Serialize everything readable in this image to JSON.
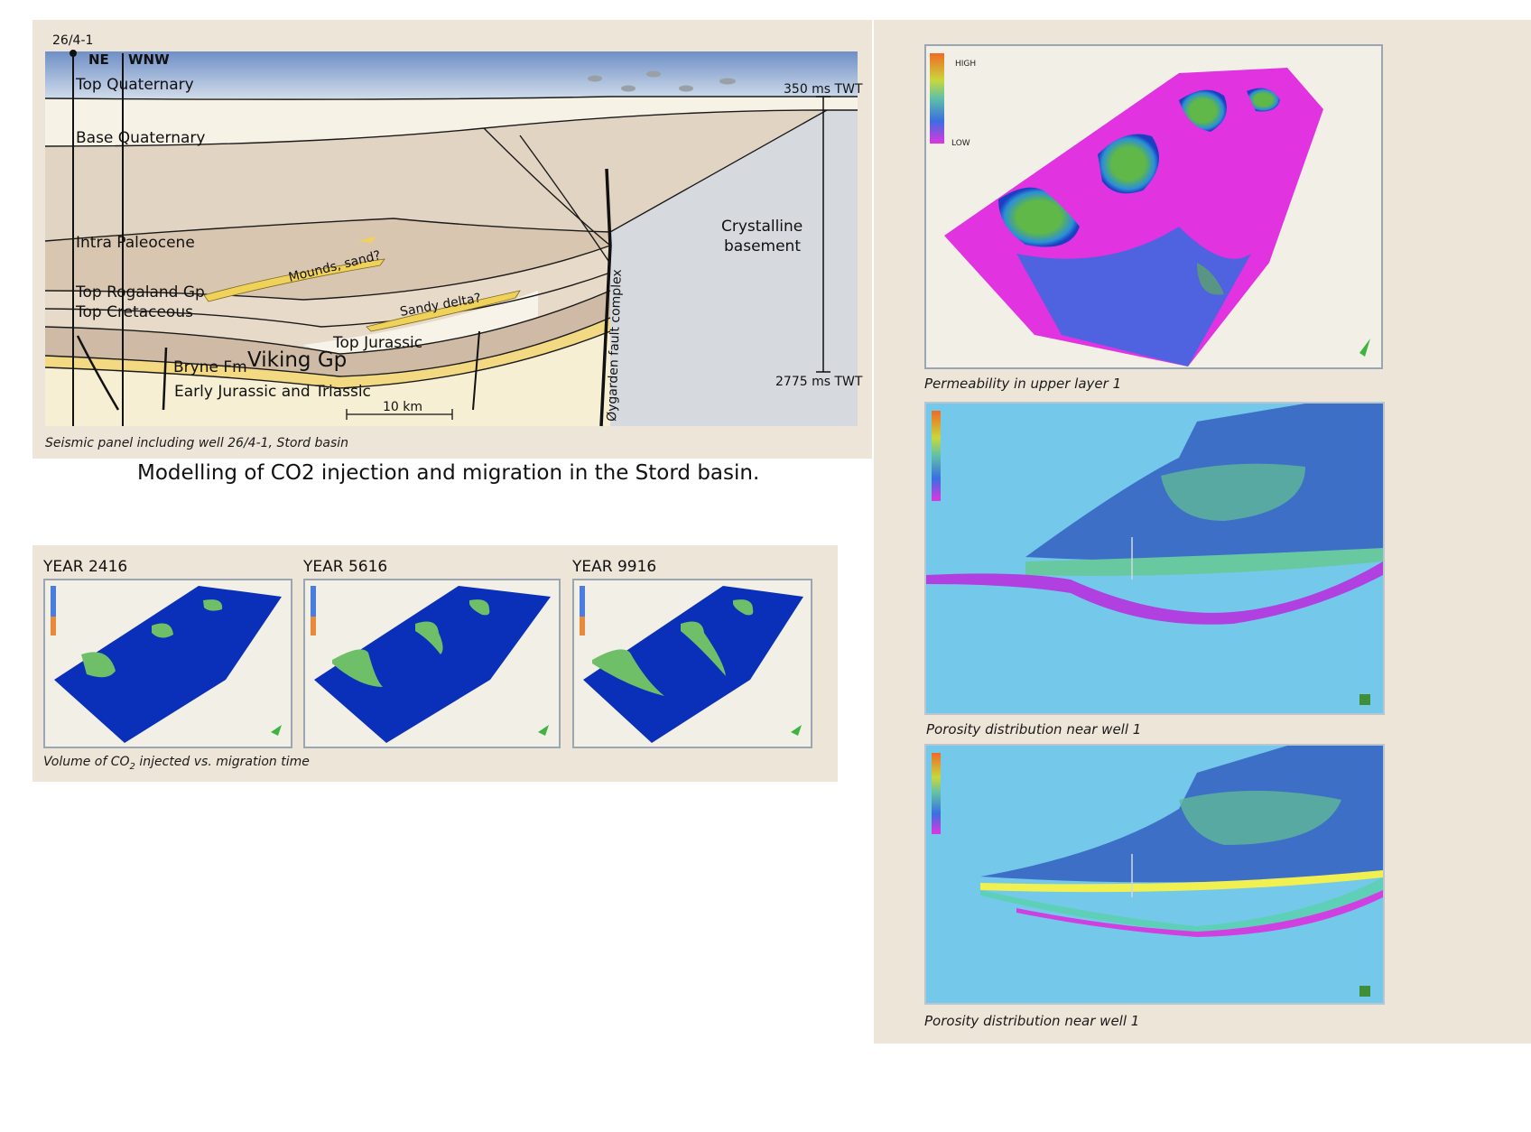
{
  "seismic": {
    "well_label": "26/4-1",
    "dir_ne": "NE",
    "dir_wnw": "WNW",
    "twt_top": "350 ms TWT",
    "twt_bottom": "2775 ms TWT",
    "scale_bar": "10 km",
    "horizons": {
      "top_quaternary": "Top Quaternary",
      "base_quaternary": "Base Quaternary",
      "intra_paleocene": "Intra Paleocene",
      "top_rogaland": "Top Rogaland Gp",
      "top_cretaceous": "Top Cretaceous",
      "top_jurassic": "Top Jurassic",
      "viking": "Viking Gp",
      "bryne": "Bryne Fm",
      "early_jurassic": "Early Jurassic and Triassic"
    },
    "annotations": {
      "mounds": "Mounds, sand?",
      "sandy_delta": "Sandy delta?",
      "crystalline_1": "Crystalline",
      "crystalline_2": "basement",
      "fault": "Øygarden fault complex"
    },
    "caption": "Seismic panel including well 26/4-1, Stord basin"
  },
  "main_title": "Modelling of CO2 injection and migration in the Stord basin.",
  "migration": {
    "years": [
      "YEAR 2416",
      "YEAR 5616",
      "YEAR 9916"
    ],
    "caption_pre": "Volume of CO",
    "caption_sub": "2",
    "caption_post": " injected vs. migration time"
  },
  "right_panels": {
    "permeability_caption": "Permeability in upper layer 1",
    "high": "HIGH",
    "low": "LOW",
    "porosity_caption_1": "Porosity distribution near well 1",
    "porosity_caption_2": "Porosity distribution near well 1"
  },
  "colors": {
    "panel_bg": "#eee5d9",
    "sea": "#9fb6d6",
    "magenta": "#e233e0",
    "model_blue": "#0a2fb8",
    "plume_green": "#5fb848",
    "cyan_bg": "#74c9ea"
  }
}
